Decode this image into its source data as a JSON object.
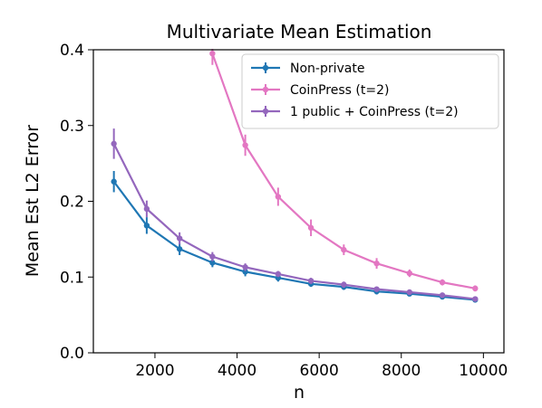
{
  "chart_data": {
    "type": "line",
    "title": "Multivariate Mean Estimation",
    "xlabel": "n",
    "ylabel": "Mean Est L2 Error",
    "xlim": [
      500,
      10500
    ],
    "ylim": [
      0,
      0.4
    ],
    "xticks": [
      2000,
      4000,
      6000,
      8000,
      10000
    ],
    "xtick_labels": [
      "2000",
      "4000",
      "6000",
      "8000",
      "10000"
    ],
    "yticks": [
      0.0,
      0.1,
      0.2,
      0.3,
      0.4
    ],
    "ytick_labels": [
      "0.0",
      "0.1",
      "0.2",
      "0.3",
      "0.4"
    ],
    "grid": false,
    "legend_position": "top-right",
    "x": [
      1000,
      1800,
      2600,
      3400,
      4200,
      5000,
      5800,
      6600,
      7400,
      8200,
      9000,
      9800
    ],
    "series": [
      {
        "name": "Non-private",
        "color": "#1f77b4",
        "values": [
          0.226,
          0.168,
          0.137,
          0.119,
          0.107,
          0.099,
          0.091,
          0.087,
          0.081,
          0.078,
          0.074,
          0.07
        ],
        "errors": [
          0.014,
          0.011,
          0.008,
          0.006,
          0.006,
          0.005,
          0.004,
          0.004,
          0.004,
          0.003,
          0.003,
          0.003
        ]
      },
      {
        "name": "CoinPress (t=2)",
        "color": "#e377c2",
        "values": [
          null,
          null,
          null,
          0.395,
          0.274,
          0.206,
          0.165,
          0.136,
          0.118,
          0.105,
          0.093,
          0.085
        ],
        "errors": [
          null,
          null,
          null,
          0.015,
          0.014,
          0.012,
          0.011,
          0.007,
          0.007,
          0.005,
          0.004,
          0.004
        ]
      },
      {
        "name": "1 public + CoinPress (t=2)",
        "color": "#9467bd",
        "values": [
          0.276,
          0.19,
          0.151,
          0.127,
          0.113,
          0.104,
          0.095,
          0.09,
          0.084,
          0.08,
          0.076,
          0.071
        ],
        "errors": [
          0.02,
          0.011,
          0.008,
          0.006,
          0.005,
          0.004,
          0.004,
          0.004,
          0.003,
          0.003,
          0.003,
          0.003
        ]
      }
    ]
  }
}
